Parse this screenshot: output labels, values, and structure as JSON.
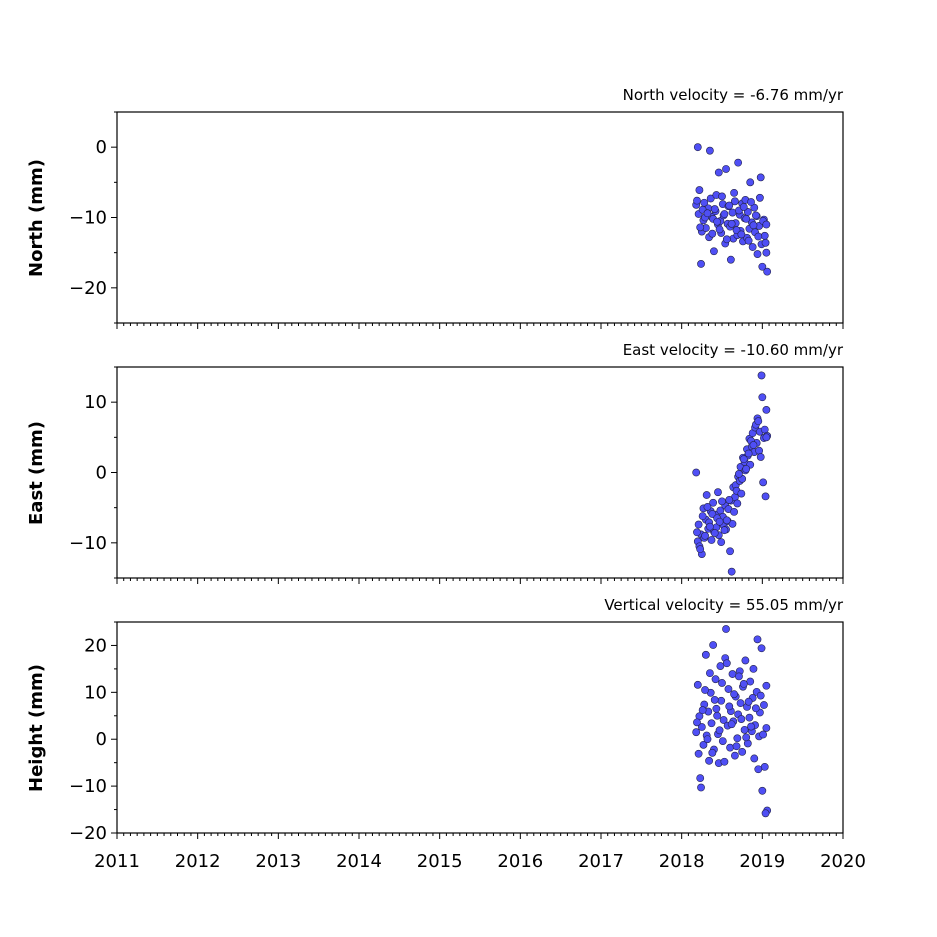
{
  "chart_data": [
    {
      "type": "scatter",
      "title": "North velocity = -6.76 mm/yr",
      "ylabel": "North (mm)",
      "xlim": [
        2011,
        2020
      ],
      "ylim": [
        -25,
        5
      ],
      "yticks": [
        0,
        -10,
        -20
      ],
      "ytick_labels": [
        "0",
        "−10",
        "−20"
      ],
      "color": "#4f4ff5",
      "component": "north"
    },
    {
      "type": "scatter",
      "title": "East velocity = -10.60 mm/yr",
      "ylabel": "East (mm)",
      "xlim": [
        2011,
        2020
      ],
      "ylim": [
        -15,
        15
      ],
      "yticks": [
        10,
        0,
        -10
      ],
      "ytick_labels": [
        "10",
        "0",
        "−10"
      ],
      "color": "#4f4ff5",
      "component": "east"
    },
    {
      "type": "scatter",
      "title": "Vertical velocity = 55.05 mm/yr",
      "ylabel": "Height (mm)",
      "xlim": [
        2011,
        2020
      ],
      "ylim": [
        -20,
        25
      ],
      "yticks": [
        20,
        10,
        0,
        -10,
        -20
      ],
      "ytick_labels": [
        "20",
        "10",
        "0",
        "−10",
        "−20"
      ],
      "xticks": [
        2011,
        2012,
        2013,
        2014,
        2015,
        2016,
        2017,
        2018,
        2019,
        2020
      ],
      "xtick_labels": [
        "2011",
        "2012",
        "2013",
        "2014",
        "2015",
        "2016",
        "2017",
        "2018",
        "2019",
        "2020"
      ],
      "color": "#4f4ff5",
      "component": "up"
    }
  ],
  "series_data": {
    "t": [
      2018.18,
      2018.2,
      2018.21,
      2018.22,
      2018.24,
      2018.25,
      2018.27,
      2018.28,
      2018.3,
      2018.31,
      2018.33,
      2018.34,
      2018.36,
      2018.37,
      2018.39,
      2018.4,
      2018.42,
      2018.43,
      2018.45,
      2018.46,
      2018.48,
      2018.49,
      2018.51,
      2018.52,
      2018.54,
      2018.55,
      2018.57,
      2018.58,
      2018.6,
      2018.61,
      2018.63,
      2018.64,
      2018.66,
      2018.67,
      2018.69,
      2018.7,
      2018.72,
      2018.73,
      2018.75,
      2018.76,
      2018.78,
      2018.79,
      2018.81,
      2018.82,
      2018.84,
      2018.85,
      2018.87,
      2018.88,
      2018.9,
      2018.91,
      2018.93,
      2018.94,
      2018.96,
      2018.97,
      2018.99,
      2019.0,
      2019.02,
      2019.03,
      2019.05,
      2019.06,
      2018.19,
      2018.23,
      2018.26,
      2018.29,
      2018.32,
      2018.35,
      2018.38,
      2018.41,
      2018.44,
      2018.47,
      2018.5,
      2018.53,
      2018.56,
      2018.59,
      2018.62,
      2018.65,
      2018.68,
      2018.71,
      2018.74,
      2018.77,
      2018.8,
      2018.83,
      2018.86,
      2018.89,
      2018.92,
      2018.95,
      2018.98,
      2019.01,
      2019.04,
      2019.05
    ],
    "north": [
      -8.2,
      0.0,
      -9.5,
      -6.1,
      -16.6,
      -12.0,
      -10.4,
      -7.9,
      -11.5,
      -9.0,
      -8.7,
      -12.8,
      -7.3,
      -9.9,
      -10.2,
      -14.8,
      -9.1,
      -6.8,
      -11.0,
      -3.6,
      -10.5,
      -12.2,
      -8.1,
      -9.7,
      -13.7,
      -3.1,
      -10.9,
      -8.4,
      -11.3,
      -16.0,
      -9.3,
      -13.0,
      -7.7,
      -10.8,
      -12.5,
      -2.2,
      -9.6,
      -11.9,
      -8.0,
      -13.4,
      -10.1,
      -7.5,
      -12.9,
      -9.2,
      -11.6,
      -5.0,
      -10.7,
      -14.2,
      -8.6,
      -12.1,
      -9.8,
      -15.2,
      -11.2,
      -7.2,
      -13.8,
      -17.0,
      -10.3,
      -12.6,
      -15.0,
      -17.7,
      -7.6,
      -11.4,
      -8.9,
      -10.0,
      -9.4,
      -0.5,
      -12.3,
      -8.8,
      -10.6,
      -11.7,
      -7.0,
      -9.5,
      -13.1,
      -8.3,
      -10.9,
      -6.5,
      -11.8,
      -9.0,
      -12.4,
      -8.5,
      -10.2,
      -13.3,
      -7.8,
      -11.1,
      -9.7,
      -12.7,
      -4.3,
      -10.5,
      -13.6,
      -11.0
    ],
    "east": [
      0.0,
      -9.8,
      -7.4,
      -10.5,
      -8.8,
      -11.6,
      -5.1,
      -9.3,
      -6.7,
      -3.2,
      -8.0,
      -7.1,
      -5.5,
      -9.6,
      -4.3,
      -8.4,
      -6.0,
      -7.8,
      -2.8,
      -8.9,
      -5.4,
      -9.9,
      -6.3,
      -7.5,
      -4.7,
      -8.1,
      -6.9,
      -5.2,
      -11.2,
      -4.0,
      -7.3,
      -2.1,
      -3.5,
      -1.8,
      -4.4,
      -0.6,
      -1.2,
      0.8,
      -0.9,
      2.1,
      1.5,
      0.3,
      3.3,
      2.4,
      4.8,
      1.1,
      3.7,
      5.6,
      2.9,
      6.4,
      4.2,
      7.7,
      3.1,
      5.8,
      13.8,
      10.7,
      4.9,
      6.1,
      8.9,
      5.2,
      -8.5,
      -10.9,
      -6.2,
      -9.0,
      -4.9,
      -7.7,
      -5.9,
      -8.6,
      -6.5,
      -7.0,
      -4.1,
      -8.2,
      -6.8,
      -3.9,
      -14.1,
      -5.6,
      -2.6,
      -0.2,
      -3.0,
      1.9,
      0.5,
      2.7,
      4.5,
      3.9,
      6.8,
      7.3,
      2.2,
      -1.4,
      -3.4,
      5.0
    ],
    "up": [
      1.5,
      11.6,
      -3.1,
      4.9,
      -10.3,
      2.6,
      -1.2,
      7.4,
      18.0,
      0.8,
      5.9,
      -4.6,
      9.9,
      3.4,
      20.1,
      -2.2,
      12.8,
      6.5,
      1.1,
      -5.1,
      15.6,
      8.2,
      -0.4,
      4.1,
      17.3,
      23.5,
      2.9,
      10.7,
      -1.8,
      6.0,
      13.9,
      3.8,
      -3.5,
      9.1,
      0.2,
      5.3,
      14.5,
      7.7,
      -2.7,
      11.2,
      2.0,
      16.8,
      6.9,
      -0.9,
      4.6,
      12.3,
      1.7,
      8.8,
      -4.1,
      3.0,
      10.1,
      21.3,
      0.6,
      5.7,
      19.4,
      -11.0,
      7.3,
      -5.9,
      2.4,
      -15.2,
      3.6,
      -8.3,
      6.2,
      10.5,
      0.0,
      14.1,
      -2.9,
      8.4,
      5.0,
      1.9,
      12.0,
      -4.8,
      16.2,
      7.0,
      3.2,
      9.6,
      -1.5,
      13.4,
      4.3,
      11.8,
      0.4,
      8.0,
      2.7,
      15.0,
      6.6,
      -6.4,
      9.3,
      1.0,
      -15.8,
      11.4
    ]
  }
}
